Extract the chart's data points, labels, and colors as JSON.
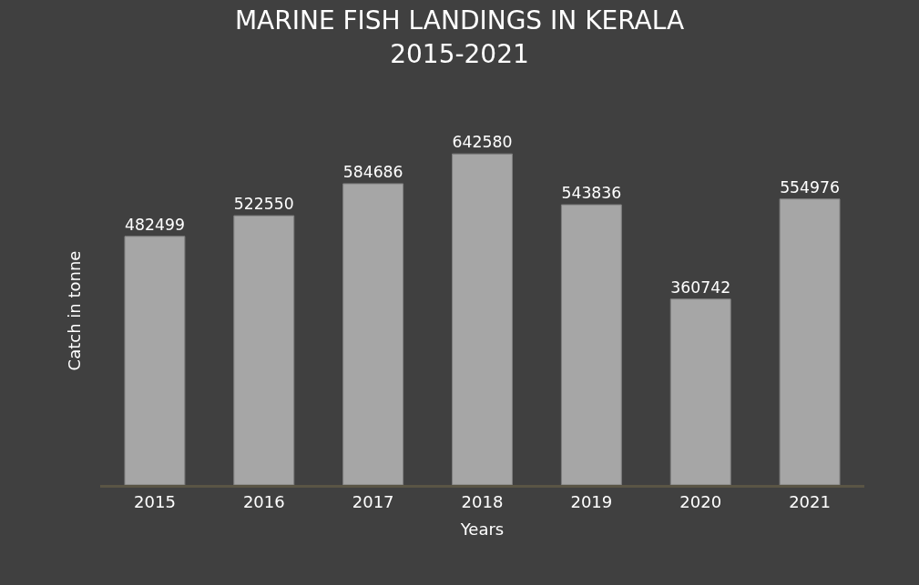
{
  "chart_data": {
    "type": "bar",
    "title": "MARINE FISH LANDINGS IN KERALA\n2015-2021",
    "xlabel": "Years",
    "ylabel": "Catch in tonne",
    "categories": [
      "2015",
      "2016",
      "2017",
      "2018",
      "2019",
      "2020",
      "2021"
    ],
    "values": [
      482499,
      522550,
      584686,
      642580,
      543836,
      360742,
      554976
    ],
    "color": "#a6a6a6",
    "data_labels": true,
    "grid": false,
    "legend": false
  }
}
